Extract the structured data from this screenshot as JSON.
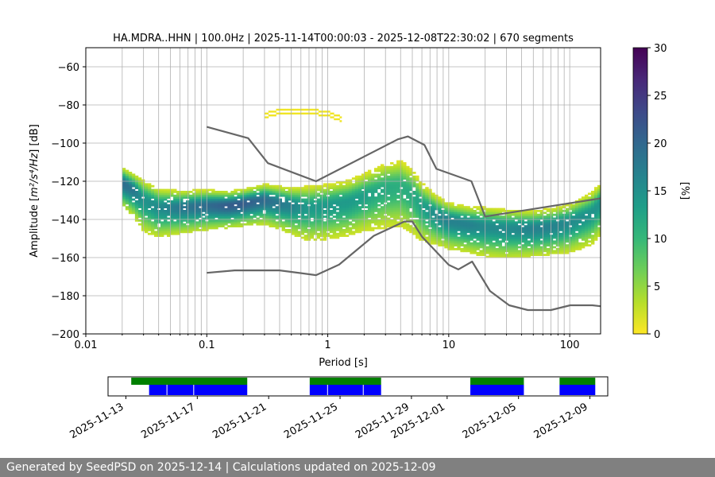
{
  "chart_data": [
    {
      "type": "heatmap",
      "title": "HA.MDRA..HHN | 100.0Hz | 2025-11-14T00:00:03 - 2025-12-08T22:30:02 | 670 segments",
      "xlabel": "Period [s]",
      "ylabel_prefix": "Amplitude [",
      "ylabel_math": "m²/s⁴/Hz",
      "ylabel_suffix": "] [dB]",
      "x_scale": "log",
      "xlim": [
        0.01,
        180
      ],
      "ylim": [
        -200,
        -50
      ],
      "x_ticks": [
        0.01,
        0.1,
        1,
        10,
        100
      ],
      "x_tick_labels": [
        "0.01",
        "0.1",
        "1",
        "10",
        "100"
      ],
      "y_ticks": [
        -200,
        -180,
        -160,
        -140,
        -120,
        -100,
        -80,
        -60
      ],
      "y_tick_labels": [
        "−200",
        "−180",
        "−160",
        "−140",
        "−120",
        "−100",
        "−80",
        "−60"
      ],
      "grid": true,
      "colorbar": {
        "label": "[%]",
        "range": [
          0,
          30
        ],
        "ticks": [
          0,
          5,
          10,
          15,
          20,
          25,
          30
        ],
        "tick_labels": [
          "0",
          "5",
          "10",
          "15",
          "20",
          "25",
          "30"
        ],
        "colormap": [
          "#fde725",
          "#b5de2b",
          "#6ece58",
          "#35b779",
          "#1f9e89",
          "#26828e",
          "#31688e",
          "#3e4989",
          "#482878",
          "#440154"
        ]
      },
      "density_mode": {
        "period": [
          0.02,
          0.025,
          0.03,
          0.04,
          0.06,
          0.1,
          0.15,
          0.2,
          0.3,
          0.5,
          0.7,
          1,
          1.5,
          2,
          3,
          4,
          5,
          6,
          8,
          10,
          15,
          20,
          30,
          50,
          70,
          100,
          150,
          180
        ],
        "amplitude": [
          -121,
          -125,
          -130,
          -134,
          -134,
          -133,
          -133,
          -132,
          -130,
          -133,
          -134,
          -133,
          -131,
          -128,
          -124,
          -123,
          -127,
          -133,
          -138,
          -141,
          -143,
          -144,
          -145,
          -145,
          -144,
          -142,
          -137,
          -132
        ]
      },
      "density_spread_db": [
        12,
        13,
        16,
        15,
        13,
        12,
        11,
        11,
        12,
        14,
        17,
        17,
        17,
        18,
        20,
        21,
        20,
        18,
        15,
        14,
        14,
        15,
        15,
        14,
        14,
        15,
        16,
        16
      ],
      "outlier_band": {
        "period": [
          0.3,
          0.4,
          0.5,
          0.7,
          1,
          1.3
        ],
        "amplitude": [
          -87,
          -85,
          -85,
          -85,
          -86,
          -89
        ]
      },
      "noise_models": [
        {
          "name": "NHNM",
          "color": "#666666",
          "period": [
            0.1,
            0.22,
            0.32,
            0.8,
            3.8,
            4.6,
            6.3,
            7.9,
            15.4,
            20,
            354.8
          ],
          "amplitude": [
            -91.5,
            -97.4,
            -110.5,
            -120,
            -98,
            -96.5,
            -101,
            -113.5,
            -120,
            -138.5,
            -126
          ]
        },
        {
          "name": "NLNM",
          "color": "#666666",
          "period": [
            0.1,
            0.17,
            0.4,
            0.8,
            1.24,
            2.4,
            4.3,
            5.0,
            6.0,
            10,
            12,
            15.6,
            21.9,
            31.6,
            45,
            70,
            101,
            154,
            180
          ],
          "amplitude": [
            -168,
            -166.7,
            -166.7,
            -169.2,
            -163.7,
            -148.6,
            -141.1,
            -141.1,
            -149,
            -163.8,
            -166.2,
            -162.1,
            -177.5,
            -185,
            -187.5,
            -187.5,
            -185,
            -185,
            -185.5
          ]
        }
      ]
    },
    {
      "type": "timeline",
      "x_range": [
        "2025-11-12",
        "2025-12-10"
      ],
      "x_tick_labels": [
        "2025-11-13",
        "2025-11-17",
        "2025-11-21",
        "2025-11-25",
        "2025-11-29",
        "2025-12-01",
        "2025-12-05",
        "2025-12-09"
      ],
      "x_tick_day_offsets": [
        1,
        5,
        9,
        13,
        17,
        19,
        23,
        27
      ],
      "tracks": [
        {
          "name": "data availability",
          "color": "#008000",
          "spans_day_offsets": [
            [
              1.3,
              7.8
            ],
            [
              11.3,
              15.3
            ],
            [
              20.3,
              23.3
            ],
            [
              25.3,
              27.3
            ]
          ]
        },
        {
          "name": "processed segments",
          "color": "#0000ff",
          "spans_day_offsets": [
            [
              2.3,
              7.8
            ],
            [
              11.3,
              15.3
            ],
            [
              20.3,
              23.3
            ],
            [
              25.3,
              27.3
            ]
          ],
          "gaps_day_offsets": [
            3.3,
            4.8,
            12.3,
            14.3
          ]
        }
      ]
    }
  ],
  "footer": {
    "text": "Generated by SeedPSD on 2025-12-14 | Calculations updated on 2025-12-09"
  }
}
